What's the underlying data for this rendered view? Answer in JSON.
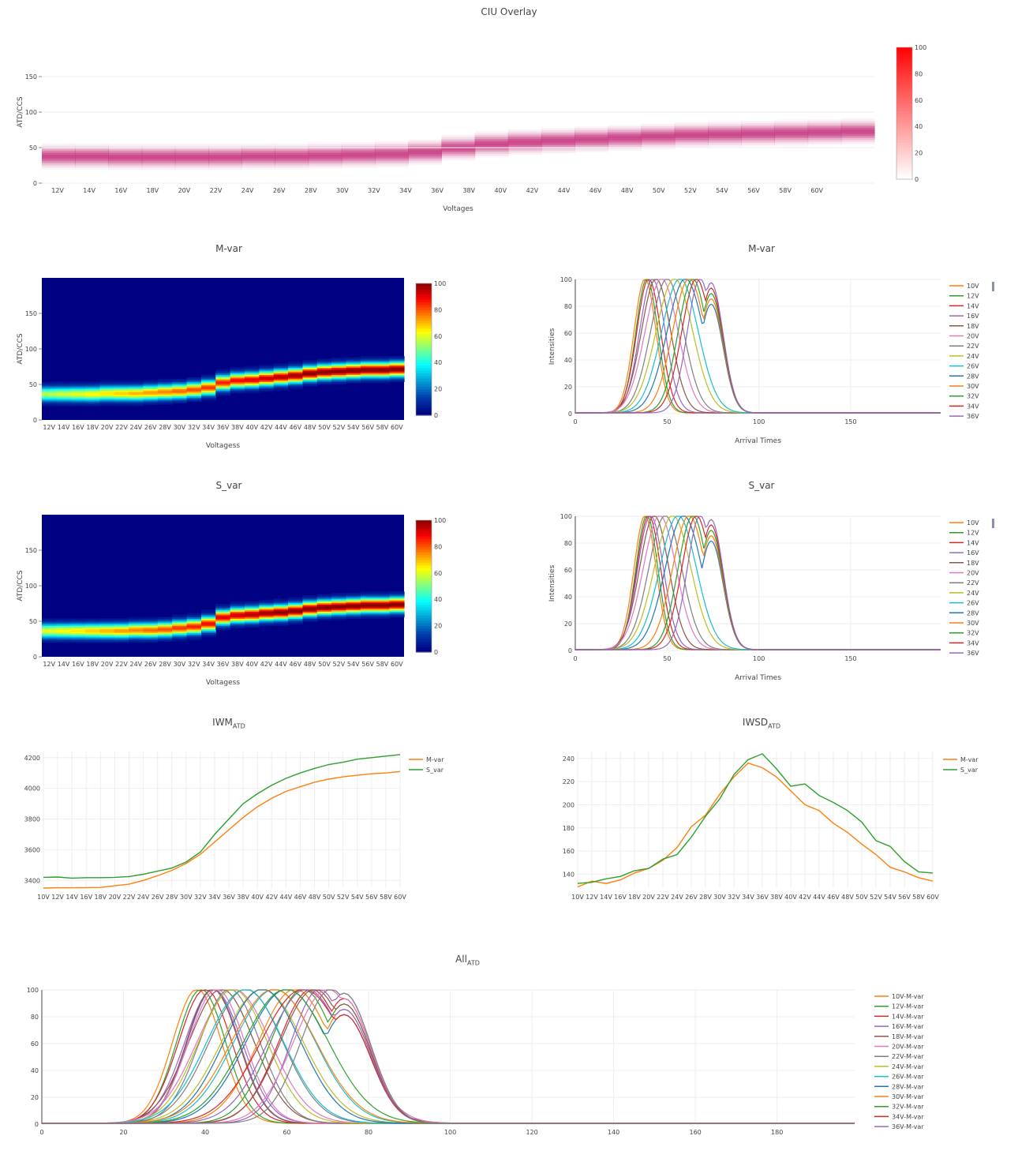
{
  "chart_data": [
    {
      "id": "ciu-overlay",
      "type": "heatmap",
      "title": "CIU Overlay",
      "xlabel": "Voltages",
      "ylabel": "ATD/CCS",
      "x_categories": [
        "12V",
        "14V",
        "16V",
        "18V",
        "20V",
        "22V",
        "24V",
        "26V",
        "28V",
        "30V",
        "32V",
        "34V",
        "36V",
        "38V",
        "40V",
        "42V",
        "44V",
        "46V",
        "48V",
        "50V",
        "52V",
        "54V",
        "56V",
        "58V",
        "60V"
      ],
      "ylim": [
        0,
        200
      ],
      "yticks": [
        0,
        50,
        100,
        150
      ],
      "colorbar": {
        "min": 0,
        "max": 100,
        "ticks": [
          0,
          20,
          40,
          60,
          80,
          100
        ],
        "colorscale": "white-red"
      },
      "band_center": [
        38,
        38,
        37,
        37,
        37,
        37,
        38,
        38,
        39,
        40,
        41,
        44,
        50,
        55,
        58,
        60,
        62,
        64,
        66,
        68,
        69,
        70,
        71,
        72,
        73
      ],
      "band_intensity": 70
    },
    {
      "id": "m-var-heatmap",
      "type": "heatmap",
      "title": "M-var",
      "xlabel": "Voltagess",
      "ylabel": "ATD/CCS",
      "x_categories": [
        "12V",
        "14V",
        "16V",
        "18V",
        "20V",
        "22V",
        "24V",
        "26V",
        "28V",
        "30V",
        "32V",
        "34V",
        "36V",
        "38V",
        "40V",
        "42V",
        "44V",
        "46V",
        "48V",
        "50V",
        "52V",
        "54V",
        "56V",
        "58V",
        "60V"
      ],
      "ylim": [
        0,
        200
      ],
      "yticks": [
        0,
        50,
        100,
        150
      ],
      "colorbar": {
        "min": 0,
        "max": 100,
        "ticks": [
          0,
          20,
          40,
          60,
          80,
          100
        ],
        "colorscale": "jet"
      },
      "band_center": [
        37,
        37,
        37,
        37,
        38,
        38,
        38,
        39,
        40,
        41,
        43,
        46,
        53,
        56,
        57,
        59,
        61,
        63,
        66,
        68,
        69,
        70,
        71,
        71,
        72
      ]
    },
    {
      "id": "m-var-atd",
      "type": "line",
      "title": "M-var",
      "xlabel": "Arrival Times",
      "ylabel": "Intensities",
      "xlim": [
        0,
        199
      ],
      "ylim": [
        0,
        100
      ],
      "xticks": [
        0,
        50,
        100,
        150
      ],
      "yticks": [
        0,
        20,
        40,
        60,
        80,
        100
      ],
      "series_names": [
        "10V",
        "12V",
        "14V",
        "16V",
        "18V",
        "20V",
        "22V",
        "24V",
        "26V",
        "28V",
        "30V",
        "32V",
        "34V",
        "36V"
      ],
      "peak_centers": [
        38,
        39,
        40,
        42,
        44,
        47,
        50,
        54,
        57,
        60,
        62,
        64,
        66,
        68
      ],
      "peak_widths": [
        6,
        6,
        6.5,
        7,
        8,
        9,
        9,
        10,
        10,
        10,
        9,
        8,
        8,
        7
      ]
    },
    {
      "id": "s-var-heatmap",
      "type": "heatmap",
      "title": "S_var",
      "xlabel": "Voltagess",
      "ylabel": "ATD/CCS",
      "x_categories": [
        "12V",
        "14V",
        "16V",
        "18V",
        "20V",
        "22V",
        "24V",
        "26V",
        "28V",
        "30V",
        "32V",
        "34V",
        "36V",
        "38V",
        "40V",
        "42V",
        "44V",
        "46V",
        "48V",
        "50V",
        "52V",
        "54V",
        "56V",
        "58V",
        "60V"
      ],
      "ylim": [
        0,
        200
      ],
      "yticks": [
        0,
        50,
        100,
        150
      ],
      "colorbar": {
        "min": 0,
        "max": 100,
        "ticks": [
          0,
          20,
          40,
          60,
          80,
          100
        ],
        "colorscale": "jet"
      },
      "band_center": [
        37,
        37,
        37,
        37,
        37,
        37,
        38,
        38,
        39,
        41,
        43,
        47,
        56,
        59,
        60,
        62,
        63,
        65,
        68,
        70,
        71,
        72,
        73,
        73,
        74
      ]
    },
    {
      "id": "s-var-atd",
      "type": "line",
      "title": "S_var",
      "xlabel": "Arrival Times",
      "ylabel": "Intensities",
      "xlim": [
        0,
        199
      ],
      "ylim": [
        0,
        100
      ],
      "xticks": [
        0,
        50,
        100,
        150
      ],
      "yticks": [
        0,
        20,
        40,
        60,
        80,
        100
      ],
      "series_names": [
        "10V",
        "12V",
        "14V",
        "16V",
        "18V",
        "20V",
        "22V",
        "24V",
        "26V",
        "28V",
        "30V",
        "32V",
        "34V",
        "36V"
      ],
      "peak_centers": [
        38,
        39,
        40,
        41,
        43,
        46,
        49,
        53,
        56,
        59,
        62,
        64,
        66,
        68
      ],
      "peak_widths": [
        6,
        6,
        6.5,
        7,
        8,
        9,
        9,
        10,
        10,
        10,
        9,
        8,
        8,
        7
      ]
    },
    {
      "id": "iwm-atd",
      "type": "line",
      "title": "IWM",
      "title_sub": "ATD",
      "x_categories": [
        "10V",
        "12V",
        "14V",
        "16V",
        "18V",
        "20V",
        "22V",
        "24V",
        "26V",
        "28V",
        "30V",
        "32V",
        "34V",
        "36V",
        "38V",
        "40V",
        "42V",
        "44V",
        "46V",
        "48V",
        "50V",
        "52V",
        "54V",
        "56V",
        "58V",
        "60V"
      ],
      "ylim": [
        3350,
        4240
      ],
      "yticks": [
        3400,
        3600,
        3800,
        4000,
        4200
      ],
      "series": [
        {
          "name": "M-var",
          "color": "#ff7f0e",
          "values": [
            3350,
            3352,
            3352,
            3353,
            3354,
            3365,
            3375,
            3400,
            3430,
            3465,
            3510,
            3570,
            3650,
            3730,
            3810,
            3880,
            3935,
            3980,
            4010,
            4040,
            4060,
            4075,
            4085,
            4095,
            4100,
            4110
          ]
        },
        {
          "name": "S_var",
          "color": "#2ca02c",
          "values": [
            3420,
            3422,
            3415,
            3418,
            3418,
            3420,
            3425,
            3440,
            3460,
            3480,
            3520,
            3585,
            3700,
            3800,
            3900,
            3965,
            4020,
            4065,
            4100,
            4130,
            4155,
            4170,
            4190,
            4200,
            4210,
            4220
          ]
        }
      ]
    },
    {
      "id": "iwsd-atd",
      "type": "line",
      "title": "IWSD",
      "title_sub": "ATD",
      "x_categories": [
        "10V",
        "12V",
        "14V",
        "16V",
        "18V",
        "20V",
        "22V",
        "24V",
        "26V",
        "28V",
        "30V",
        "32V",
        "34V",
        "36V",
        "38V",
        "40V",
        "42V",
        "44V",
        "46V",
        "48V",
        "50V",
        "52V",
        "54V",
        "56V",
        "58V",
        "60V"
      ],
      "ylim": [
        128,
        246
      ],
      "yticks": [
        140,
        160,
        180,
        200,
        220,
        240
      ],
      "series": [
        {
          "name": "M-var",
          "color": "#ff7f0e",
          "values": [
            129,
            134,
            132,
            135,
            141,
            145,
            152,
            163,
            181,
            191,
            209,
            224,
            236,
            232,
            224,
            212,
            200,
            195,
            184,
            176,
            166,
            157,
            146,
            142,
            137,
            134
          ]
        },
        {
          "name": "S_var",
          "color": "#2ca02c",
          "values": [
            132,
            133,
            136,
            138,
            143,
            145,
            153,
            157,
            172,
            190,
            205,
            226,
            239,
            244,
            231,
            216,
            218,
            208,
            202,
            195,
            185,
            169,
            164,
            151,
            142,
            141
          ]
        }
      ]
    },
    {
      "id": "all-atd",
      "type": "line",
      "title": "All",
      "title_sub": "ATD",
      "xlim": [
        0,
        199
      ],
      "ylim": [
        0,
        100
      ],
      "xticks": [
        0,
        20,
        40,
        60,
        80,
        100,
        120,
        140,
        160,
        180
      ],
      "yticks": [
        0,
        20,
        40,
        60,
        80,
        100
      ],
      "series_names": [
        "10V-M-var",
        "12V-M-var",
        "14V-M-var",
        "16V-M-var",
        "18V-M-var",
        "20V-M-var",
        "22V-M-var",
        "24V-M-var",
        "26V-M-var",
        "28V-M-var",
        "30V-M-var",
        "32V-M-var",
        "34V-M-var",
        "36V-M-var"
      ],
      "peak_centers": [
        38,
        39,
        40,
        42,
        44,
        47,
        50,
        54,
        57,
        60,
        62,
        64,
        66,
        68
      ],
      "peak_widths": [
        6,
        6,
        6.5,
        7,
        8,
        9,
        9,
        10,
        10,
        10,
        9,
        8,
        8,
        7
      ]
    }
  ],
  "palette": [
    "#1f77b4",
    "#ff7f0e",
    "#2ca02c",
    "#d62728",
    "#9467bd",
    "#8c564b",
    "#e377c2",
    "#7f7f7f",
    "#bcbd22",
    "#17becf"
  ]
}
